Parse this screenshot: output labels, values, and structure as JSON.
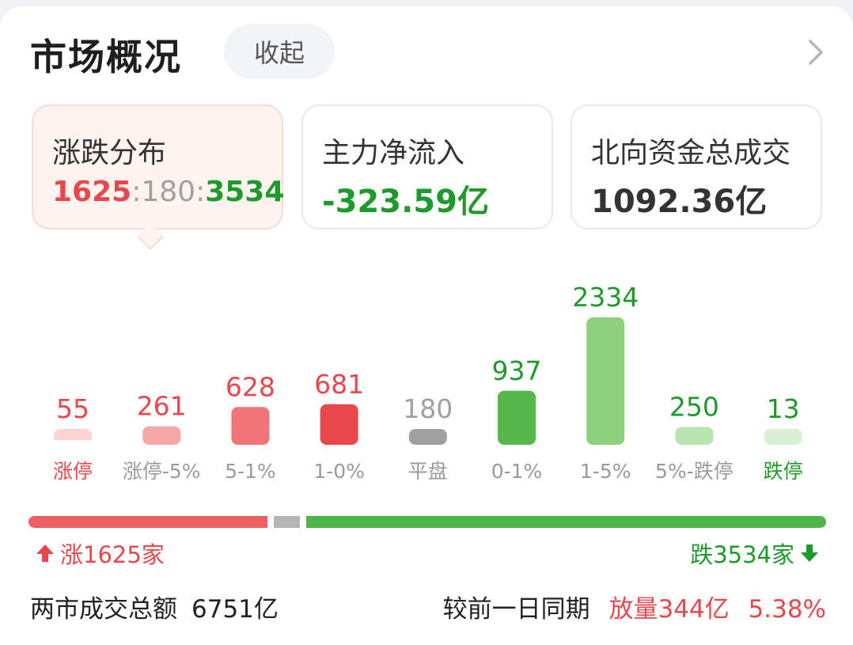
{
  "header": {
    "title": "市场概况",
    "collapse_label": "收起"
  },
  "stats": [
    {
      "label": "涨跌分布",
      "up": "1625",
      "sep1": ":",
      "flat": "180",
      "sep2": ":",
      "down": "3534"
    },
    {
      "label": "主力净流入",
      "value": "-323.59亿"
    },
    {
      "label": "北向资金总成交",
      "value": "1092.36亿"
    }
  ],
  "colors": {
    "up": "#e8474c",
    "down": "#1e9a2c",
    "flat": "#9e9e9e"
  },
  "chart_data": {
    "type": "bar",
    "categories": [
      "涨停",
      "涨停-5%",
      "5-1%",
      "1-0%",
      "平盘",
      "0-1%",
      "1-5%",
      "5%-跌停",
      "跌停"
    ],
    "values": [
      55,
      261,
      628,
      681,
      180,
      937,
      2334,
      250,
      13
    ],
    "bar_colors": [
      "#fdd5d5",
      "#f5a7a8",
      "#ef7576",
      "#e8474c",
      "#a0a0a0",
      "#55b84a",
      "#8dd07e",
      "#b8e4b0",
      "#d9f0d5"
    ],
    "value_colors": [
      "#e8474c",
      "#e8474c",
      "#e8474c",
      "#e8474c",
      "#a0a0a0",
      "#1e9a2c",
      "#1e9a2c",
      "#1e9a2c",
      "#1e9a2c"
    ],
    "label_colors": [
      "#e8474c",
      "#9a9a9a",
      "#9a9a9a",
      "#9a9a9a",
      "#9a9a9a",
      "#9a9a9a",
      "#9a9a9a",
      "#9a9a9a",
      "#1e9a2c"
    ]
  },
  "ratio": {
    "up": 1625,
    "flat": 180,
    "down": 3534
  },
  "summary": {
    "up_text": "涨1625家",
    "down_text": "跌3534家"
  },
  "footer": {
    "turnover_label": "两市成交总额",
    "turnover_value": "6751亿",
    "compare_label": "较前一日同期",
    "compare_change": "放量344亿",
    "compare_pct": "5.38%"
  }
}
